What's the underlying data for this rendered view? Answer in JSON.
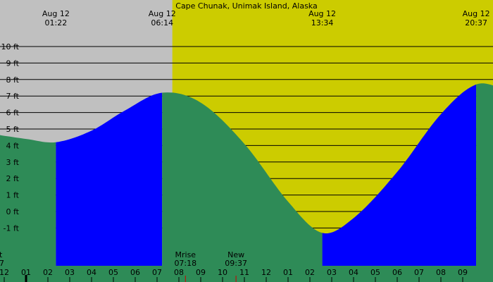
{
  "chart_data": {
    "type": "area",
    "title": "Cape Chunak, Unimak Island, Alaska",
    "units": "ft",
    "yticks": [
      -1,
      0,
      1,
      2,
      3,
      4,
      5,
      6,
      7,
      8,
      9,
      10
    ],
    "ytick_labels": [
      "-1 ft",
      "0 ft",
      "1 ft",
      "2 ft",
      "3 ft",
      "4 ft",
      "5 ft",
      "6 ft",
      "7 ft",
      "8 ft",
      "9 ft",
      "10 ft"
    ],
    "time_range_hours": [
      -4.7,
      22.0
    ],
    "tide_extremes": [
      {
        "date": "Aug 12",
        "time": "01:22",
        "hours": 1.3667,
        "height": 4.2,
        "type": "low"
      },
      {
        "date": "Aug 12",
        "time": "06:14",
        "hours": 6.2333,
        "height": 7.2,
        "type": "high"
      },
      {
        "date": "Aug 12",
        "time": "13:34",
        "hours": 13.5667,
        "height": -1.3,
        "type": "low"
      },
      {
        "date": "Aug 12",
        "time": "20:37",
        "hours": 20.6167,
        "height": 7.7,
        "type": "high"
      }
    ],
    "series": [
      {
        "name": "",
        "x": [
          -4.7,
          -3,
          -1.5,
          0,
          1.3667,
          3,
          4.5,
          6.2333,
          8,
          10,
          12,
          13.5667,
          15,
          17,
          19,
          20.6167,
          22
        ],
        "y": [
          5.6,
          5.1,
          4.7,
          4.4,
          4.2,
          4.9,
          6.1,
          7.2,
          6.6,
          4.1,
          0.6,
          -1.3,
          -0.4,
          2.4,
          5.9,
          7.7,
          7.4
        ]
      }
    ],
    "daylight_period": {
      "start": "06:42",
      "end": ""
    },
    "x_hour_labels": [
      "11",
      "12",
      "01",
      "02",
      "03",
      "04",
      "05",
      "06",
      "07",
      "08",
      "09",
      "10",
      "11",
      "12",
      "01",
      "02",
      "03",
      "04",
      "05",
      "06",
      "07",
      "08",
      "09"
    ],
    "moon_events": [
      {
        "label": "Mrise",
        "time": "07:18"
      },
      {
        "label": "New",
        "time": "09:37"
      }
    ],
    "clipped_left_label": {
      "line1": "t",
      "line2": "7"
    },
    "colors": {
      "night_background": "#c0c0c0",
      "day_background": "#cccc00",
      "rising_tide": "#0000ff",
      "falling_tide": "#2e8b57",
      "gridline": "#000000",
      "marker": "#cc0000"
    }
  }
}
